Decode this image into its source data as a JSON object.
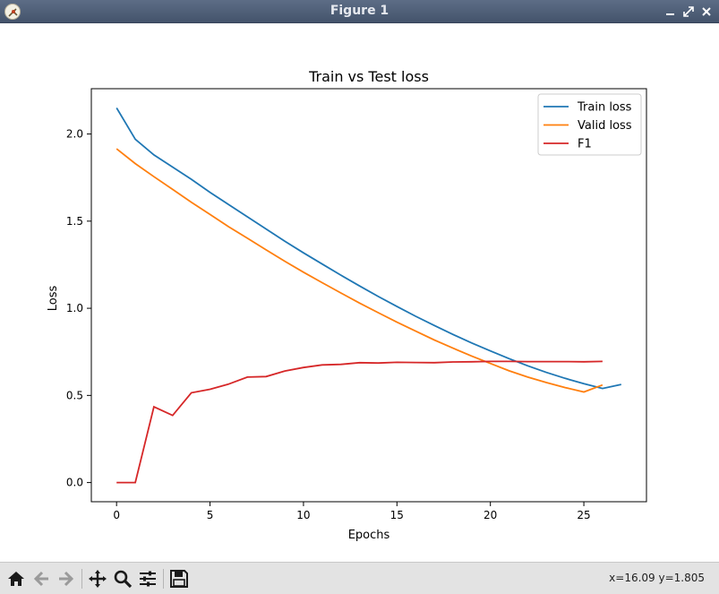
{
  "window": {
    "title": "Figure 1",
    "controls": [
      {
        "name": "minimize-button",
        "glyph": "–"
      },
      {
        "name": "maximize-button",
        "glyph": "⤢"
      },
      {
        "name": "close-button",
        "glyph": "✕"
      }
    ]
  },
  "toolbar": {
    "buttons": [
      "home-icon",
      "back-arrow-icon",
      "forward-arrow-icon",
      "pan-icon",
      "zoom-icon",
      "configure-subplots-icon",
      "save-icon"
    ],
    "coordinates": "x=16.09 y=1.805"
  },
  "chart_data": {
    "type": "line",
    "title": "Train vs Test loss",
    "xlabel": "Epochs",
    "ylabel": "Loss",
    "xlim": [
      -1.35,
      28.35
    ],
    "ylim": [
      -0.11,
      2.26
    ],
    "xticks": [
      0,
      5,
      10,
      15,
      20,
      25
    ],
    "yticks": [
      0.0,
      0.5,
      1.0,
      1.5,
      2.0
    ],
    "ytick_labels": [
      "0.0",
      "0.5",
      "1.0",
      "1.5",
      "2.0"
    ],
    "legend_position": "top-right",
    "grid": false,
    "series": [
      {
        "name": "Train loss",
        "color": "#1f77b4",
        "x": [
          0,
          1,
          2,
          3,
          4,
          5,
          6,
          7,
          8,
          9,
          10,
          11,
          12,
          13,
          14,
          15,
          16,
          17,
          18,
          19,
          20,
          21,
          22,
          23,
          24,
          25,
          26,
          27
        ],
        "values": [
          2.15,
          1.97,
          1.88,
          1.81,
          1.74,
          1.665,
          1.595,
          1.525,
          1.455,
          1.385,
          1.318,
          1.254,
          1.19,
          1.128,
          1.068,
          1.01,
          0.954,
          0.901,
          0.85,
          0.801,
          0.755,
          0.711,
          0.67,
          0.632,
          0.598,
          0.567,
          0.54,
          0.563
        ]
      },
      {
        "name": "Valid loss",
        "color": "#ff7f0e",
        "x": [
          0,
          1,
          2,
          3,
          4,
          5,
          6,
          7,
          8,
          9,
          10,
          11,
          12,
          13,
          14,
          15,
          16,
          17,
          18,
          19,
          20,
          21,
          22,
          23,
          24,
          25,
          26
        ],
        "values": [
          1.915,
          1.83,
          1.755,
          1.682,
          1.608,
          1.538,
          1.468,
          1.402,
          1.335,
          1.27,
          1.207,
          1.147,
          1.088,
          1.03,
          0.975,
          0.92,
          0.869,
          0.818,
          0.771,
          0.726,
          0.683,
          0.641,
          0.605,
          0.574,
          0.545,
          0.52,
          0.56
        ]
      },
      {
        "name": "F1",
        "color": "#d62728",
        "x": [
          0,
          1,
          2,
          3,
          4,
          5,
          6,
          7,
          8,
          9,
          10,
          11,
          12,
          13,
          14,
          15,
          16,
          17,
          18,
          19,
          20,
          21,
          22,
          23,
          24,
          25,
          26
        ],
        "values": [
          0.0,
          0.0,
          0.435,
          0.385,
          0.515,
          0.535,
          0.565,
          0.605,
          0.608,
          0.64,
          0.66,
          0.675,
          0.678,
          0.688,
          0.686,
          0.69,
          0.689,
          0.688,
          0.692,
          0.693,
          0.695,
          0.695,
          0.694,
          0.694,
          0.694,
          0.693,
          0.695
        ]
      }
    ]
  }
}
